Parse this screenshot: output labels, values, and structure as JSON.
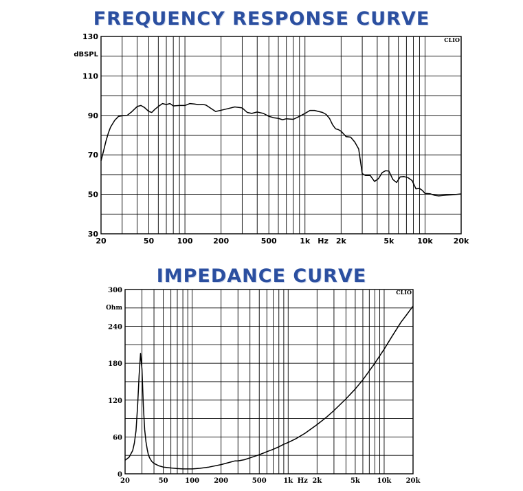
{
  "chart_data": [
    {
      "type": "line",
      "title": "FREQUENCY RESPONSE CURVE",
      "ylabel": "dBSPL",
      "watermark": "CLIO",
      "xscale": "log",
      "xlim": [
        20,
        20000
      ],
      "ylim": [
        30,
        130
      ],
      "x_tick_labels": [
        "20",
        "50",
        "100",
        "200",
        "500",
        "1k",
        "Hz",
        "2k",
        "5k",
        "10k",
        "20k"
      ],
      "y_tick_labels": [
        "30",
        "50",
        "70",
        "90",
        "110",
        "130"
      ],
      "grid": true,
      "series": [
        {
          "x": [
            20,
            21,
            22,
            23,
            24,
            26,
            28,
            30,
            33,
            36,
            40,
            43,
            46,
            50,
            53,
            56,
            60,
            65,
            70,
            75,
            80,
            90,
            100,
            110,
            120,
            130,
            140,
            150,
            165,
            180,
            200,
            230,
            260,
            300,
            330,
            360,
            400,
            450,
            500,
            550,
            600,
            650,
            700,
            800,
            900,
            1000,
            1100,
            1200,
            1300,
            1400,
            1500,
            1600,
            1700,
            1800,
            1900,
            2000,
            2200,
            2400,
            2600,
            2800,
            3000,
            3200,
            3500,
            3800,
            4100,
            4400,
            4700,
            5000,
            5400,
            5800,
            6200,
            6700,
            7200,
            7800,
            8400,
            9000,
            9500,
            10000,
            11000,
            12000,
            13000,
            15000,
            17000,
            20000
          ],
          "values": [
            67,
            72,
            77,
            81,
            84,
            87.5,
            89.5,
            89.8,
            90,
            91.8,
            94.5,
            95,
            94,
            92,
            91.5,
            93,
            94.5,
            96,
            95.5,
            96,
            94.8,
            95,
            95,
            96,
            95.8,
            95.4,
            95.6,
            95.2,
            93.5,
            92,
            92.6,
            93.5,
            94.3,
            93.8,
            91.5,
            91,
            91.7,
            91,
            89.5,
            88.8,
            88.5,
            87.8,
            88.3,
            88,
            89.5,
            91,
            92.5,
            92.5,
            92,
            91.5,
            90.5,
            88.5,
            85.2,
            83.2,
            82.8,
            82,
            79.2,
            79,
            76.5,
            73,
            60.5,
            59.5,
            59.5,
            56.5,
            58,
            61,
            62,
            61.8,
            57.5,
            56,
            58.8,
            59,
            58.5,
            57,
            52.8,
            53,
            52,
            50.5,
            50.3,
            49.5,
            49.2,
            49.6,
            49.8,
            50.2
          ]
        }
      ]
    },
    {
      "type": "line",
      "title": "IMPEDANCE CURVE",
      "ylabel": "Ohm",
      "watermark": "CLIO",
      "xscale": "log",
      "xlim": [
        20,
        20000
      ],
      "ylim": [
        0,
        300
      ],
      "x_tick_labels": [
        "20",
        "50",
        "100",
        "200",
        "500",
        "1k",
        "Hz",
        "2k",
        "5k",
        "10k",
        "20k"
      ],
      "y_tick_labels": [
        "0",
        "60",
        "120",
        "180",
        "240",
        "300"
      ],
      "grid": true,
      "series": [
        {
          "x": [
            20,
            22,
            24,
            25,
            26,
            27,
            28,
            29,
            30,
            31,
            32,
            33,
            34,
            35,
            36,
            38,
            40,
            45,
            50,
            60,
            70,
            80,
            90,
            100,
            120,
            150,
            200,
            250,
            280,
            300,
            350,
            400,
            500,
            600,
            700,
            800,
            900,
            1000,
            1200,
            1500,
            2000,
            2500,
            3000,
            4000,
            5000,
            6000,
            8000,
            10000,
            12000,
            15000,
            17000,
            20000
          ],
          "values": [
            22,
            27,
            38,
            50,
            70,
            110,
            160,
            196,
            170,
            110,
            72,
            52,
            40,
            31,
            26,
            20,
            17,
            13,
            11,
            9.5,
            8.5,
            8,
            8,
            8,
            9,
            11,
            15,
            19,
            21,
            21,
            23,
            26,
            31,
            36,
            40,
            44,
            48,
            51,
            57,
            66,
            80,
            92,
            103,
            122,
            138,
            153,
            180,
            203,
            223,
            247,
            258,
            273
          ]
        }
      ]
    }
  ]
}
